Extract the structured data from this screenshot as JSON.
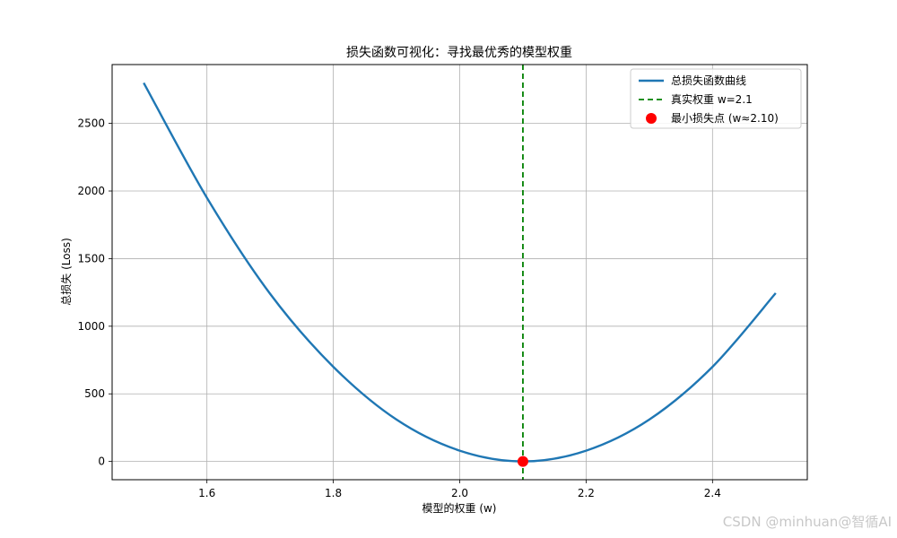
{
  "chart_data": {
    "type": "line",
    "title": "损失函数可视化：寻找最优秀的模型权重",
    "xlabel": "模型的权重 (w)",
    "ylabel": "总损失 (Loss)",
    "xlim": [
      1.45,
      2.55
    ],
    "ylim": [
      -135,
      2935
    ],
    "xticks": [
      1.6,
      1.8,
      2.0,
      2.2,
      2.4
    ],
    "xtick_labels": [
      "1.6",
      "1.8",
      "2.0",
      "2.2",
      "2.4"
    ],
    "yticks": [
      0,
      500,
      1000,
      1500,
      2000,
      2500
    ],
    "ytick_labels": [
      "0",
      "500",
      "1000",
      "1500",
      "2000",
      "2500"
    ],
    "grid": true,
    "legend_position": "top-right",
    "series": [
      {
        "name": "总损失函数曲线",
        "color": "#1f77b4",
        "style": "solid",
        "x": [
          1.5,
          1.6,
          1.7,
          1.8,
          1.9,
          2.0,
          2.1,
          2.2,
          2.3,
          2.4,
          2.5
        ],
        "y": [
          2800,
          1950,
          1240,
          700,
          310,
          80,
          0,
          80,
          310,
          700,
          1245
        ]
      }
    ],
    "vline": {
      "name": "真实权重 w=2.1",
      "x": 2.1,
      "color": "#008000",
      "style": "dashed"
    },
    "point": {
      "name": "最小损失点 (w≈2.10)",
      "x": 2.1,
      "y": 0,
      "color": "#ff0000"
    }
  },
  "watermark": "CSDN @minhuan@智循AI"
}
